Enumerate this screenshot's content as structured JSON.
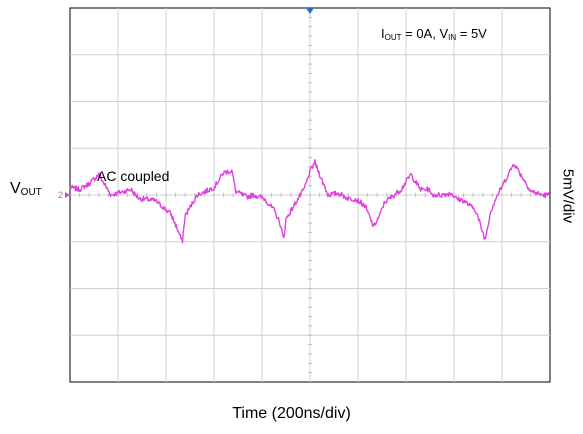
{
  "chart_data": {
    "type": "line",
    "title": "",
    "conditions": {
      "iout_main": "I",
      "iout_sub": "OUT",
      "iout_value": " = 0A, ",
      "vin_main": "V",
      "vin_sub": "IN",
      "vin_value": " = 5V"
    },
    "trace_label_main": "V",
    "trace_label_sub": "OUT",
    "channel_marker": "2",
    "annotation": "AC coupled",
    "xlabel": "Time (200ns/div)",
    "ylabel": "5mV/div",
    "x_unit": "ns",
    "y_unit": "mV",
    "xlim": [
      0,
      2000
    ],
    "ylim": [
      -20,
      20
    ],
    "grid": true,
    "series": [
      {
        "color": "#e040e0",
        "x": [
          0,
          40,
          80,
          120,
          170,
          255,
          265,
          290,
          300,
          355,
          420,
          445,
          468,
          480,
          530,
          600,
          640,
          675,
          690,
          735,
          765,
          790,
          810,
          850,
          875,
          890,
          900,
          945,
          975,
          1000,
          1020,
          1075,
          1120,
          1160,
          1185,
          1200,
          1230,
          1265,
          1290,
          1310,
          1380,
          1420,
          1460,
          1500,
          1500,
          1545,
          1590,
          1610,
          1640,
          1690,
          1715,
          1730,
          1750,
          1770,
          1790,
          1810,
          1850,
          1920,
          1970,
          2000
        ],
        "y": [
          0.8,
          0.6,
          1.2,
          2.2,
          0.0,
          0.6,
          0.2,
          -0.4,
          -0.4,
          -0.6,
          -2.0,
          -3.5,
          -5.0,
          -2.2,
          0.0,
          0.8,
          2.4,
          2.6,
          0.4,
          -0.2,
          0.0,
          -0.2,
          -0.4,
          -1.6,
          -3.0,
          -4.8,
          -2.6,
          -0.6,
          0.6,
          2.5,
          3.5,
          0.0,
          0.2,
          -0.4,
          -0.4,
          -0.6,
          -1.2,
          -3.4,
          -2.2,
          -0.8,
          0.6,
          2.2,
          0.6,
          0.6,
          0.0,
          0.0,
          0.2,
          -0.4,
          -0.6,
          -1.6,
          -3.6,
          -4.8,
          -2.0,
          -0.6,
          0.4,
          1.4,
          3.4,
          0.4,
          0.0,
          0.0
        ]
      }
    ]
  }
}
